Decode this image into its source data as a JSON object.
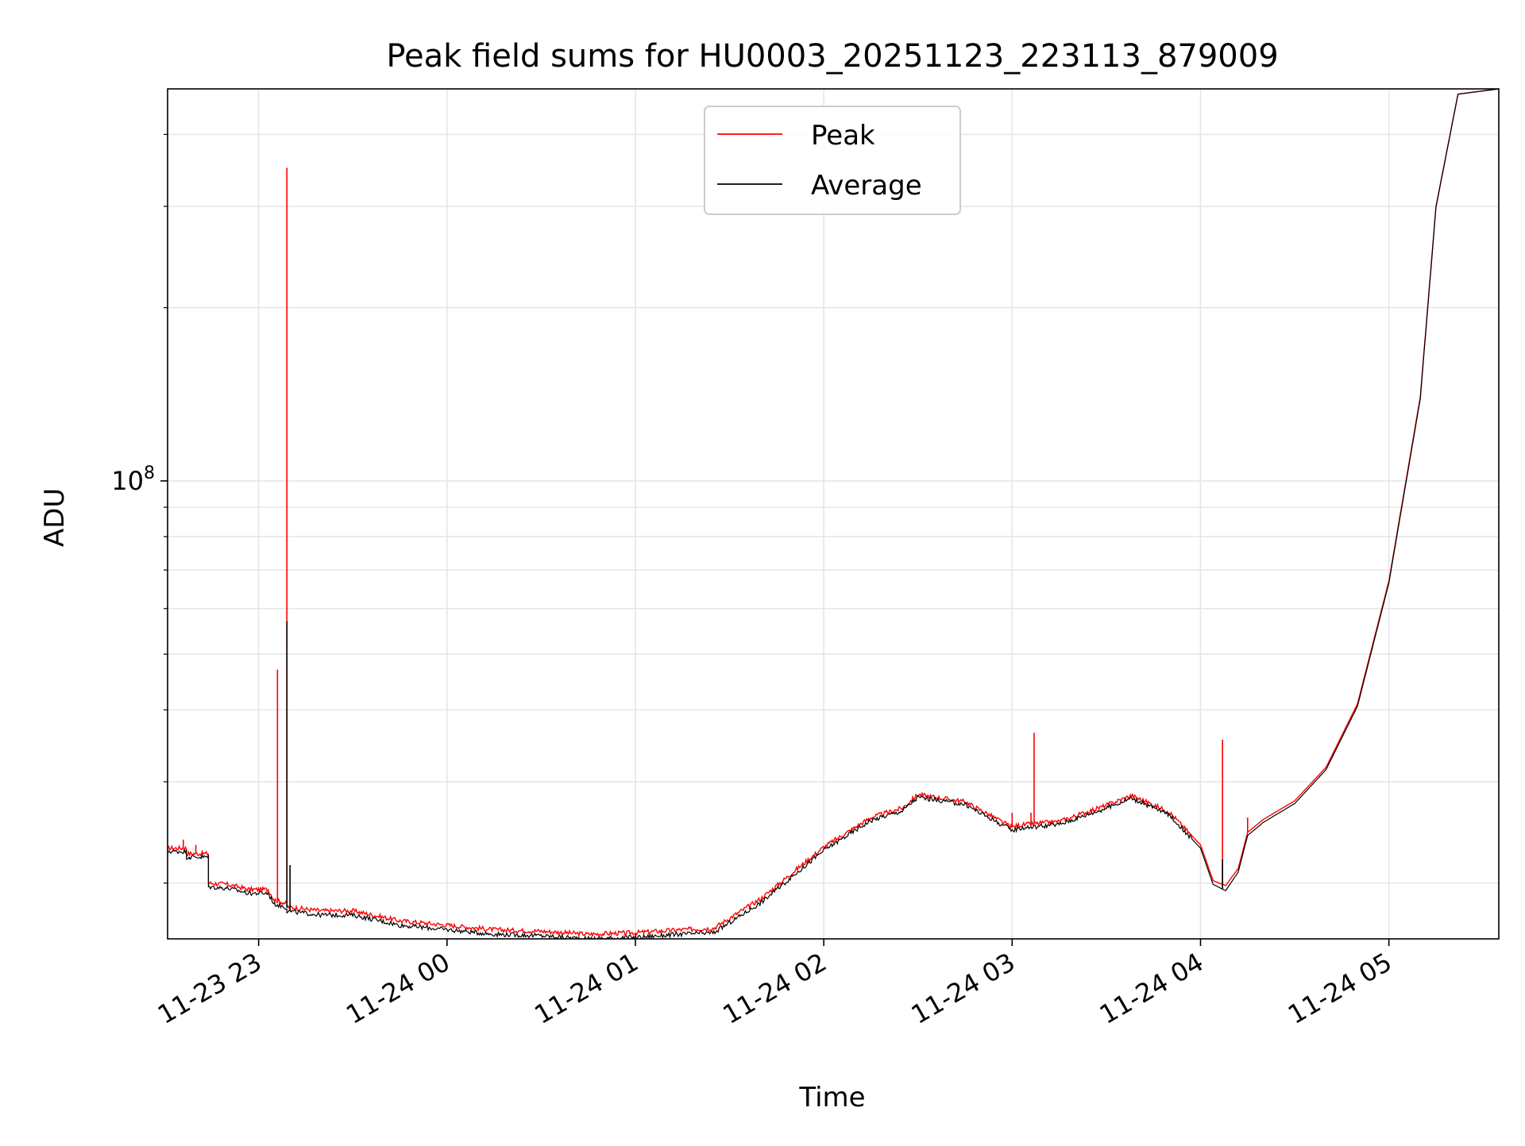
{
  "chart_data": {
    "type": "line",
    "title": "Peak field sums for HU0003_20251123_223113_879009",
    "xlabel": "Time",
    "ylabel": "ADU",
    "yscale": "log",
    "grid": true,
    "legend_position": "top-center",
    "x_tick_labels": [
      "11-23 23",
      "11-24 00",
      "11-24 01",
      "11-24 02",
      "11-24 03",
      "11-24 04",
      "11-24 05"
    ],
    "x_tick_times": [
      "2025-11-23 23:00",
      "2025-11-24 00:00",
      "2025-11-24 01:00",
      "2025-11-24 02:00",
      "2025-11-24 03:00",
      "2025-11-24 04:00",
      "2025-11-24 05:00"
    ],
    "xlim": [
      "2025-11-23 22:31",
      "2025-11-24 05:35"
    ],
    "y_major_tick": {
      "value": 100000000,
      "base": "10",
      "exponent": "8"
    },
    "ylim": [
      16000000,
      480000000
    ],
    "series": [
      {
        "name": "Peak",
        "color": "#ff0000",
        "x": [
          "2025-11-23 22:31",
          "2025-11-23 22:37",
          "2025-11-23 22:37",
          "2025-11-23 22:44",
          "2025-11-23 22:44",
          "2025-11-23 22:50",
          "2025-11-23 22:57",
          "2025-11-23 23:03",
          "2025-11-23 23:05",
          "2025-11-23 23:05",
          "2025-11-23 23:08",
          "2025-11-23 23:09",
          "2025-11-23 23:09",
          "2025-11-23 23:12",
          "2025-11-23 23:20",
          "2025-11-23 23:30",
          "2025-11-23 23:45",
          "2025-11-24 00:00",
          "2025-11-24 00:15",
          "2025-11-24 00:30",
          "2025-11-24 00:45",
          "2025-11-24 01:00",
          "2025-11-24 01:15",
          "2025-11-24 01:25",
          "2025-11-24 01:40",
          "2025-11-24 02:00",
          "2025-11-24 02:15",
          "2025-11-24 02:25",
          "2025-11-24 02:30",
          "2025-11-24 02:45",
          "2025-11-24 03:00",
          "2025-11-24 03:02",
          "2025-11-24 03:15",
          "2025-11-24 03:30",
          "2025-11-24 03:38",
          "2025-11-24 03:50",
          "2025-11-24 04:00",
          "2025-11-24 04:04",
          "2025-11-24 04:08",
          "2025-11-24 04:12",
          "2025-11-24 04:15",
          "2025-11-24 04:20",
          "2025-11-24 04:30",
          "2025-11-24 04:40",
          "2025-11-24 04:50",
          "2025-11-24 05:00",
          "2025-11-24 05:10",
          "2025-11-24 05:15",
          "2025-11-24 05:22",
          "2025-11-24 05:35"
        ],
        "y": [
          23000000,
          23000000,
          22500000,
          22500000,
          20000000,
          19900000,
          19500000,
          19500000,
          18700000,
          18700000,
          18500000,
          18400000,
          18200000,
          18100000,
          17900000,
          17900000,
          17200000,
          16900000,
          16600000,
          16500000,
          16300000,
          16400000,
          16600000,
          16700000,
          18800000,
          23100000,
          26000000,
          27000000,
          28500000,
          27700000,
          25000000,
          25200000,
          25600000,
          27300000,
          28400000,
          26600000,
          23300000,
          20200000,
          19800000,
          21200000,
          24500000,
          25800000,
          27800000,
          31800000,
          41000000,
          67000000,
          140000000,
          300000000,
          470000000,
          480000000
        ],
        "spikes": [
          {
            "x": "2025-11-23 22:36",
            "y": 23800000
          },
          {
            "x": "2025-11-23 22:40",
            "y": 23300000
          },
          {
            "x": "2025-11-23 23:06",
            "y": 47000000
          },
          {
            "x": "2025-11-23 23:09",
            "y": 350000000
          },
          {
            "x": "2025-11-24 03:00",
            "y": 26500000
          },
          {
            "x": "2025-11-24 03:06",
            "y": 26500000
          },
          {
            "x": "2025-11-24 03:07",
            "y": 36500000
          },
          {
            "x": "2025-11-24 04:07",
            "y": 35500000
          },
          {
            "x": "2025-11-24 04:15",
            "y": 26000000
          }
        ]
      },
      {
        "name": "Average",
        "color": "#000000",
        "x": [
          "2025-11-23 22:31",
          "2025-11-23 22:37",
          "2025-11-23 22:37",
          "2025-11-23 22:44",
          "2025-11-23 22:44",
          "2025-11-23 22:50",
          "2025-11-23 22:57",
          "2025-11-23 23:03",
          "2025-11-23 23:05",
          "2025-11-23 23:05",
          "2025-11-23 23:08",
          "2025-11-23 23:09",
          "2025-11-23 23:09",
          "2025-11-23 23:12",
          "2025-11-23 23:20",
          "2025-11-23 23:30",
          "2025-11-23 23:45",
          "2025-11-24 00:00",
          "2025-11-24 00:15",
          "2025-11-24 00:30",
          "2025-11-24 00:45",
          "2025-11-24 01:00",
          "2025-11-24 01:15",
          "2025-11-24 01:25",
          "2025-11-24 01:40",
          "2025-11-24 02:00",
          "2025-11-24 02:15",
          "2025-11-24 02:25",
          "2025-11-24 02:30",
          "2025-11-24 02:45",
          "2025-11-24 03:00",
          "2025-11-24 03:02",
          "2025-11-24 03:15",
          "2025-11-24 03:30",
          "2025-11-24 03:38",
          "2025-11-24 03:50",
          "2025-11-24 04:00",
          "2025-11-24 04:04",
          "2025-11-24 04:08",
          "2025-11-24 04:12",
          "2025-11-24 04:15",
          "2025-11-24 04:20",
          "2025-11-24 04:30",
          "2025-11-24 04:40",
          "2025-11-24 04:50",
          "2025-11-24 05:00",
          "2025-11-24 05:10",
          "2025-11-24 05:15",
          "2025-11-24 05:22",
          "2025-11-24 05:35"
        ],
        "y": [
          22700000,
          22700000,
          22200000,
          22200000,
          19700000,
          19600000,
          19200000,
          19200000,
          18400000,
          18400000,
          18200000,
          18100000,
          17900000,
          17800000,
          17600000,
          17600000,
          16900000,
          16600000,
          16300000,
          16200000,
          16000000,
          16100000,
          16300000,
          16400000,
          18500000,
          22800000,
          25700000,
          26700000,
          28200000,
          27400000,
          24700000,
          24900000,
          25300000,
          27000000,
          28100000,
          26300000,
          23000000,
          19900000,
          19400000,
          20900000,
          24200000,
          25500000,
          27500000,
          31500000,
          40600000,
          66500000,
          139000000,
          299000000,
          470000000,
          480000000
        ],
        "spikes": [
          {
            "x": "2025-11-23 22:38",
            "y": 22000000
          },
          {
            "x": "2025-11-23 23:09",
            "y": 57000000
          },
          {
            "x": "2025-11-23 23:10",
            "y": 21500000
          },
          {
            "x": "2025-11-24 04:07",
            "y": 22000000
          }
        ]
      }
    ]
  }
}
